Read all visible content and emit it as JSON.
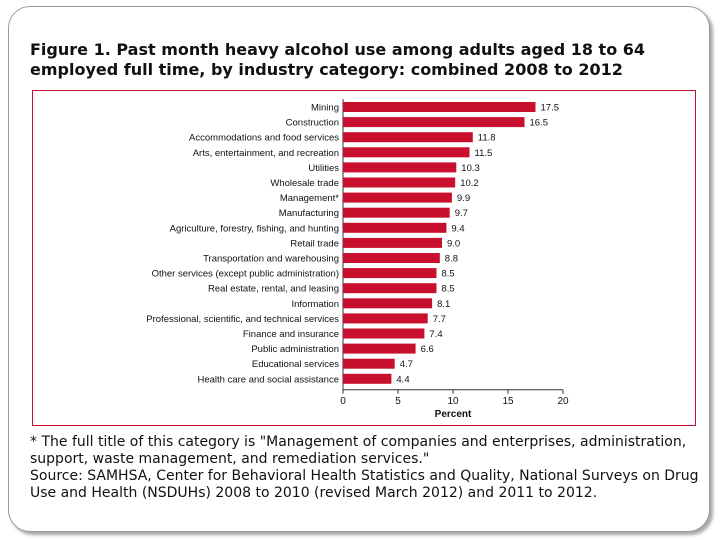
{
  "figure": {
    "title": "Figure 1. Past month heavy alcohol use among adults aged 18 to 64 employed full time, by industry category: combined 2008 to 2012"
  },
  "chart_data": {
    "type": "bar",
    "orientation": "horizontal",
    "title": "Figure 1. Past month heavy alcohol use among adults aged 18 to 64 employed full time, by industry category: combined 2008 to 2012",
    "xlabel": "Percent",
    "ylabel": "",
    "xlim": [
      0,
      20
    ],
    "xticks": [
      0,
      5,
      10,
      15,
      20
    ],
    "grid": false,
    "bar_color": "#c8102e",
    "categories": [
      "Mining",
      "Construction",
      "Accommodations and food services",
      "Arts, entertainment, and recreation",
      "Utilities",
      "Wholesale trade",
      "Management*",
      "Manufacturing",
      "Agriculture, forestry, fishing, and hunting",
      "Retail trade",
      "Transportation and warehousing",
      "Other services (except public administration)",
      "Real estate, rental, and leasing",
      "Information",
      "Professional, scientific, and technical services",
      "Finance and insurance",
      "Public administration",
      "Educational services",
      "Health care and social assistance"
    ],
    "values": [
      17.5,
      16.5,
      11.8,
      11.5,
      10.3,
      10.2,
      9.9,
      9.7,
      9.4,
      9.0,
      8.8,
      8.5,
      8.5,
      8.1,
      7.7,
      7.4,
      6.6,
      4.7,
      4.4
    ],
    "value_labels": [
      "17.5",
      "16.5",
      "11.8",
      "11.5",
      "10.3",
      "10.2",
      "9.9",
      "9.7",
      "9.4",
      "9.0",
      "8.8",
      "8.5",
      "8.5",
      "8.1",
      "7.7",
      "7.4",
      "6.6",
      "4.7",
      "4.4"
    ]
  },
  "footnote": {
    "asterisk_note": "* The full title of this category is \"Management of companies and enterprises, administration, support, waste management, and remediation services.\"",
    "source": "Source: SAMHSA, Center for Behavioral Health Statistics and Quality, National Surveys on Drug Use and Health (NSDUHs) 2008 to 2010 (revised March 2012) and 2011 to 2012."
  }
}
